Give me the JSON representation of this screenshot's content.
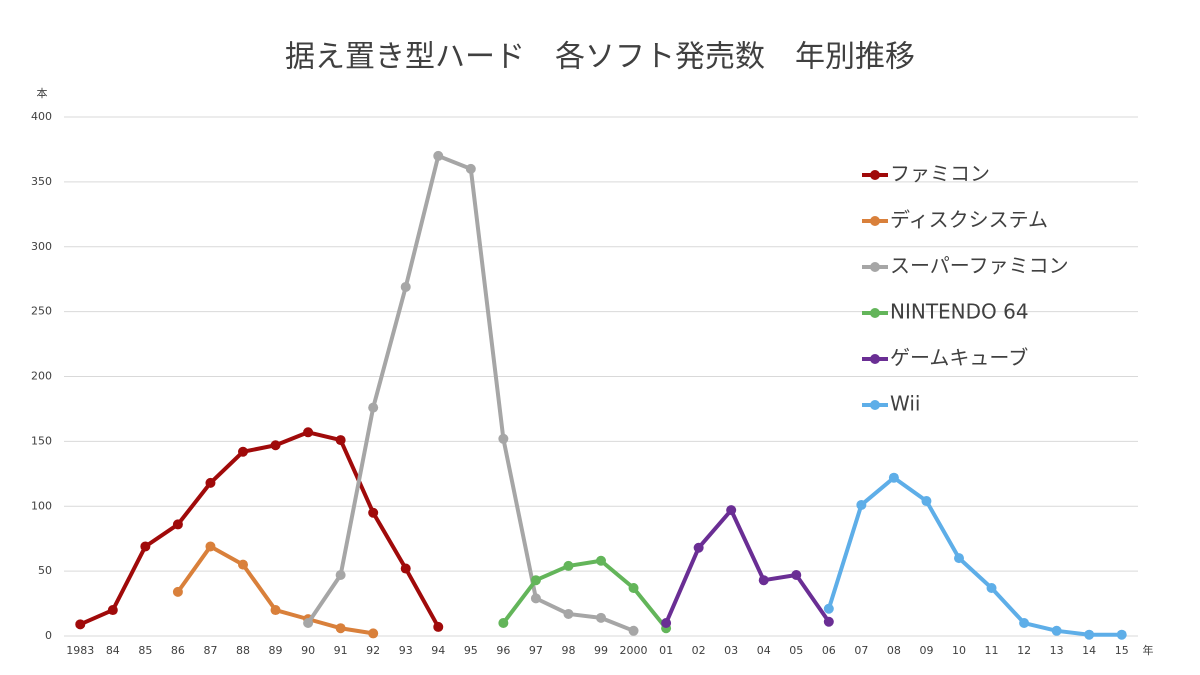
{
  "chart_data": {
    "type": "line",
    "title": "据え置き型ハード　各ソフト発売数　年別推移",
    "y_label": "本",
    "x_label": "年",
    "categories": [
      "1983",
      "84",
      "85",
      "86",
      "87",
      "88",
      "89",
      "90",
      "91",
      "92",
      "93",
      "94",
      "95",
      "96",
      "97",
      "98",
      "99",
      "2000",
      "01",
      "02",
      "03",
      "04",
      "05",
      "06",
      "07",
      "08",
      "09",
      "10",
      "11",
      "12",
      "13",
      "14",
      "15"
    ],
    "ylim": [
      0,
      400
    ],
    "yticks": [
      0,
      50,
      100,
      150,
      200,
      250,
      300,
      350,
      400
    ],
    "grid": true,
    "series": [
      {
        "name": "ファミコン",
        "color": "#a00a0a",
        "values": [
          9,
          20,
          69,
          86,
          118,
          142,
          147,
          157,
          151,
          95,
          52,
          7,
          null,
          null,
          null,
          null,
          null,
          null,
          null,
          null,
          null,
          null,
          null,
          null,
          null,
          null,
          null,
          null,
          null,
          null,
          null,
          null,
          null
        ]
      },
      {
        "name": "ディスクシステム",
        "color": "#d9803b",
        "values": [
          null,
          null,
          null,
          34,
          69,
          55,
          20,
          13,
          6,
          2,
          null,
          null,
          null,
          null,
          null,
          null,
          null,
          null,
          null,
          null,
          null,
          null,
          null,
          null,
          null,
          null,
          null,
          null,
          null,
          null,
          null,
          null,
          null
        ]
      },
      {
        "name": "スーパーファミコン",
        "color": "#a6a6a6",
        "values": [
          null,
          null,
          null,
          null,
          null,
          null,
          null,
          10,
          47,
          176,
          269,
          370,
          360,
          152,
          29,
          17,
          14,
          4,
          null,
          null,
          null,
          null,
          null,
          null,
          null,
          null,
          null,
          null,
          null,
          null,
          null,
          null,
          null
        ]
      },
      {
        "name": "NINTENDO 64",
        "color": "#63b55a",
        "values": [
          null,
          null,
          null,
          null,
          null,
          null,
          null,
          null,
          null,
          null,
          null,
          null,
          null,
          10,
          43,
          54,
          58,
          37,
          6,
          null,
          null,
          null,
          null,
          null,
          null,
          null,
          null,
          null,
          null,
          null,
          null,
          null,
          null
        ]
      },
      {
        "name": "ゲームキューブ",
        "color": "#6a2e94",
        "values": [
          null,
          null,
          null,
          null,
          null,
          null,
          null,
          null,
          null,
          null,
          null,
          null,
          null,
          null,
          null,
          null,
          null,
          null,
          10,
          68,
          97,
          43,
          47,
          11,
          null,
          null,
          null,
          null,
          null,
          null,
          null,
          null,
          null
        ]
      },
      {
        "name": "Wii",
        "color": "#5eaee8",
        "values": [
          null,
          null,
          null,
          null,
          null,
          null,
          null,
          null,
          null,
          null,
          null,
          null,
          null,
          null,
          null,
          null,
          null,
          null,
          null,
          null,
          null,
          null,
          null,
          21,
          101,
          122,
          104,
          60,
          37,
          10,
          4,
          1,
          1
        ]
      }
    ]
  }
}
